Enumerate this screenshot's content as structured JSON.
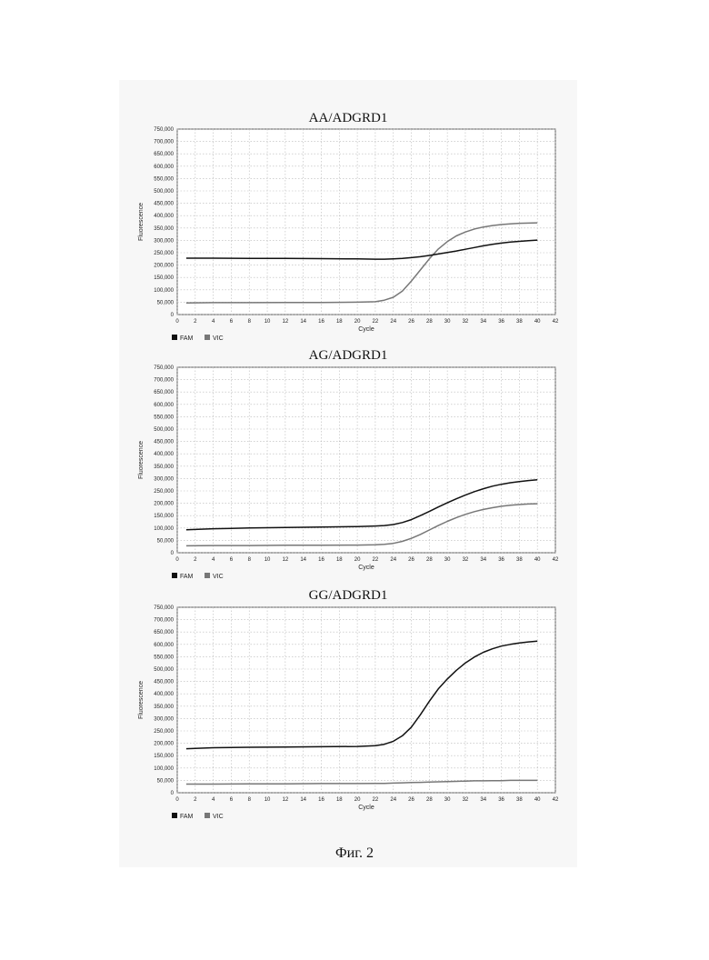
{
  "chart_data": [
    {
      "type": "line",
      "title": "AA/ADGRD1",
      "xlabel": "Cycle",
      "ylabel": "Fluorescence",
      "xlim": [
        0,
        42
      ],
      "ylim": [
        0,
        750000
      ],
      "x_ticks": [
        "0",
        "2",
        "4",
        "6",
        "8",
        "10",
        "12",
        "14",
        "16",
        "18",
        "20",
        "22",
        "24",
        "26",
        "28",
        "30",
        "32",
        "34",
        "36",
        "38",
        "40",
        "42"
      ],
      "y_ticks": [
        "0",
        "50,000",
        "100,000",
        "150,000",
        "200,000",
        "250,000",
        "300,000",
        "350,000",
        "400,000",
        "450,000",
        "500,000",
        "550,000",
        "600,000",
        "650,000",
        "700,000",
        "750,000"
      ],
      "grid": true,
      "legend": "bottom-left",
      "x": [
        1,
        4,
        8,
        12,
        16,
        20,
        22,
        23,
        24,
        25,
        26,
        27,
        28,
        29,
        30,
        31,
        32,
        33,
        34,
        35,
        36,
        37,
        38,
        39,
        40
      ],
      "series": [
        {
          "name": "FAM",
          "color": "#111111",
          "values": [
            228000,
            228000,
            227000,
            227000,
            226000,
            225000,
            224000,
            224000,
            225000,
            227000,
            230000,
            234000,
            239000,
            245000,
            251000,
            257000,
            264000,
            271000,
            278000,
            284000,
            289000,
            293000,
            296000,
            299000,
            301000
          ]
        },
        {
          "name": "VIC",
          "color": "#777777",
          "values": [
            47000,
            48000,
            48000,
            49000,
            49000,
            50000,
            52000,
            58000,
            70000,
            95000,
            135000,
            180000,
            225000,
            265000,
            295000,
            318000,
            334000,
            346000,
            354000,
            360000,
            364000,
            367000,
            369000,
            370000,
            371000
          ]
        }
      ]
    },
    {
      "type": "line",
      "title": "AG/ADGRD1",
      "xlabel": "Cycle",
      "ylabel": "Fluorescence",
      "xlim": [
        0,
        42
      ],
      "ylim": [
        0,
        750000
      ],
      "x_ticks": [
        "0",
        "2",
        "4",
        "6",
        "8",
        "10",
        "12",
        "14",
        "16",
        "18",
        "20",
        "22",
        "24",
        "26",
        "28",
        "30",
        "32",
        "34",
        "36",
        "38",
        "40",
        "42"
      ],
      "y_ticks": [
        "0",
        "50,000",
        "100,000",
        "150,000",
        "200,000",
        "250,000",
        "300,000",
        "350,000",
        "400,000",
        "450,000",
        "500,000",
        "550,000",
        "600,000",
        "650,000",
        "700,000",
        "750,000"
      ],
      "grid": true,
      "legend": "bottom-left",
      "x": [
        1,
        4,
        8,
        12,
        16,
        20,
        22,
        23,
        24,
        25,
        26,
        27,
        28,
        29,
        30,
        31,
        32,
        33,
        34,
        35,
        36,
        37,
        38,
        39,
        40
      ],
      "series": [
        {
          "name": "FAM",
          "color": "#111111",
          "values": [
            93000,
            97000,
            100000,
            102000,
            104000,
            106000,
            108000,
            110000,
            114000,
            122000,
            134000,
            150000,
            167000,
            185000,
            202000,
            218000,
            233000,
            247000,
            259000,
            269000,
            277000,
            283000,
            288000,
            292000,
            295000
          ]
        },
        {
          "name": "VIC",
          "color": "#777777",
          "values": [
            28000,
            29000,
            29000,
            30000,
            30000,
            31000,
            32000,
            34000,
            38000,
            46000,
            58000,
            74000,
            92000,
            110000,
            127000,
            142000,
            155000,
            166000,
            175000,
            182000,
            188000,
            192000,
            195000,
            197000,
            198000
          ]
        }
      ]
    },
    {
      "type": "line",
      "title": "GG/ADGRD1",
      "xlabel": "Cycle",
      "ylabel": "Fluorescence",
      "xlim": [
        0,
        42
      ],
      "ylim": [
        0,
        750000
      ],
      "x_ticks": [
        "0",
        "2",
        "4",
        "6",
        "8",
        "10",
        "12",
        "14",
        "16",
        "18",
        "20",
        "22",
        "24",
        "26",
        "28",
        "30",
        "32",
        "34",
        "36",
        "38",
        "40",
        "42"
      ],
      "y_ticks": [
        "0",
        "50,000",
        "100,000",
        "150,000",
        "200,000",
        "250,000",
        "300,000",
        "350,000",
        "400,000",
        "450,000",
        "500,000",
        "550,000",
        "600,000",
        "650,000",
        "700,000",
        "750,000"
      ],
      "grid": true,
      "legend": "bottom-left",
      "x": [
        1,
        4,
        8,
        12,
        16,
        20,
        22,
        23,
        24,
        25,
        26,
        27,
        28,
        29,
        30,
        31,
        32,
        33,
        34,
        35,
        36,
        37,
        38,
        39,
        40
      ],
      "series": [
        {
          "name": "FAM",
          "color": "#111111",
          "values": [
            178000,
            182000,
            184000,
            185000,
            186000,
            187000,
            190000,
            196000,
            208000,
            230000,
            265000,
            315000,
            370000,
            420000,
            460000,
            495000,
            525000,
            549000,
            568000,
            582000,
            593000,
            600000,
            606000,
            610000,
            613000
          ]
        },
        {
          "name": "VIC",
          "color": "#777777",
          "values": [
            35000,
            35000,
            36000,
            36000,
            37000,
            37000,
            38000,
            38000,
            39000,
            40000,
            41000,
            42000,
            43000,
            44000,
            45000,
            46000,
            47000,
            48000,
            48000,
            49000,
            49000,
            50000,
            50000,
            50000,
            50000
          ]
        }
      ]
    }
  ],
  "caption": "Фиг. 2"
}
